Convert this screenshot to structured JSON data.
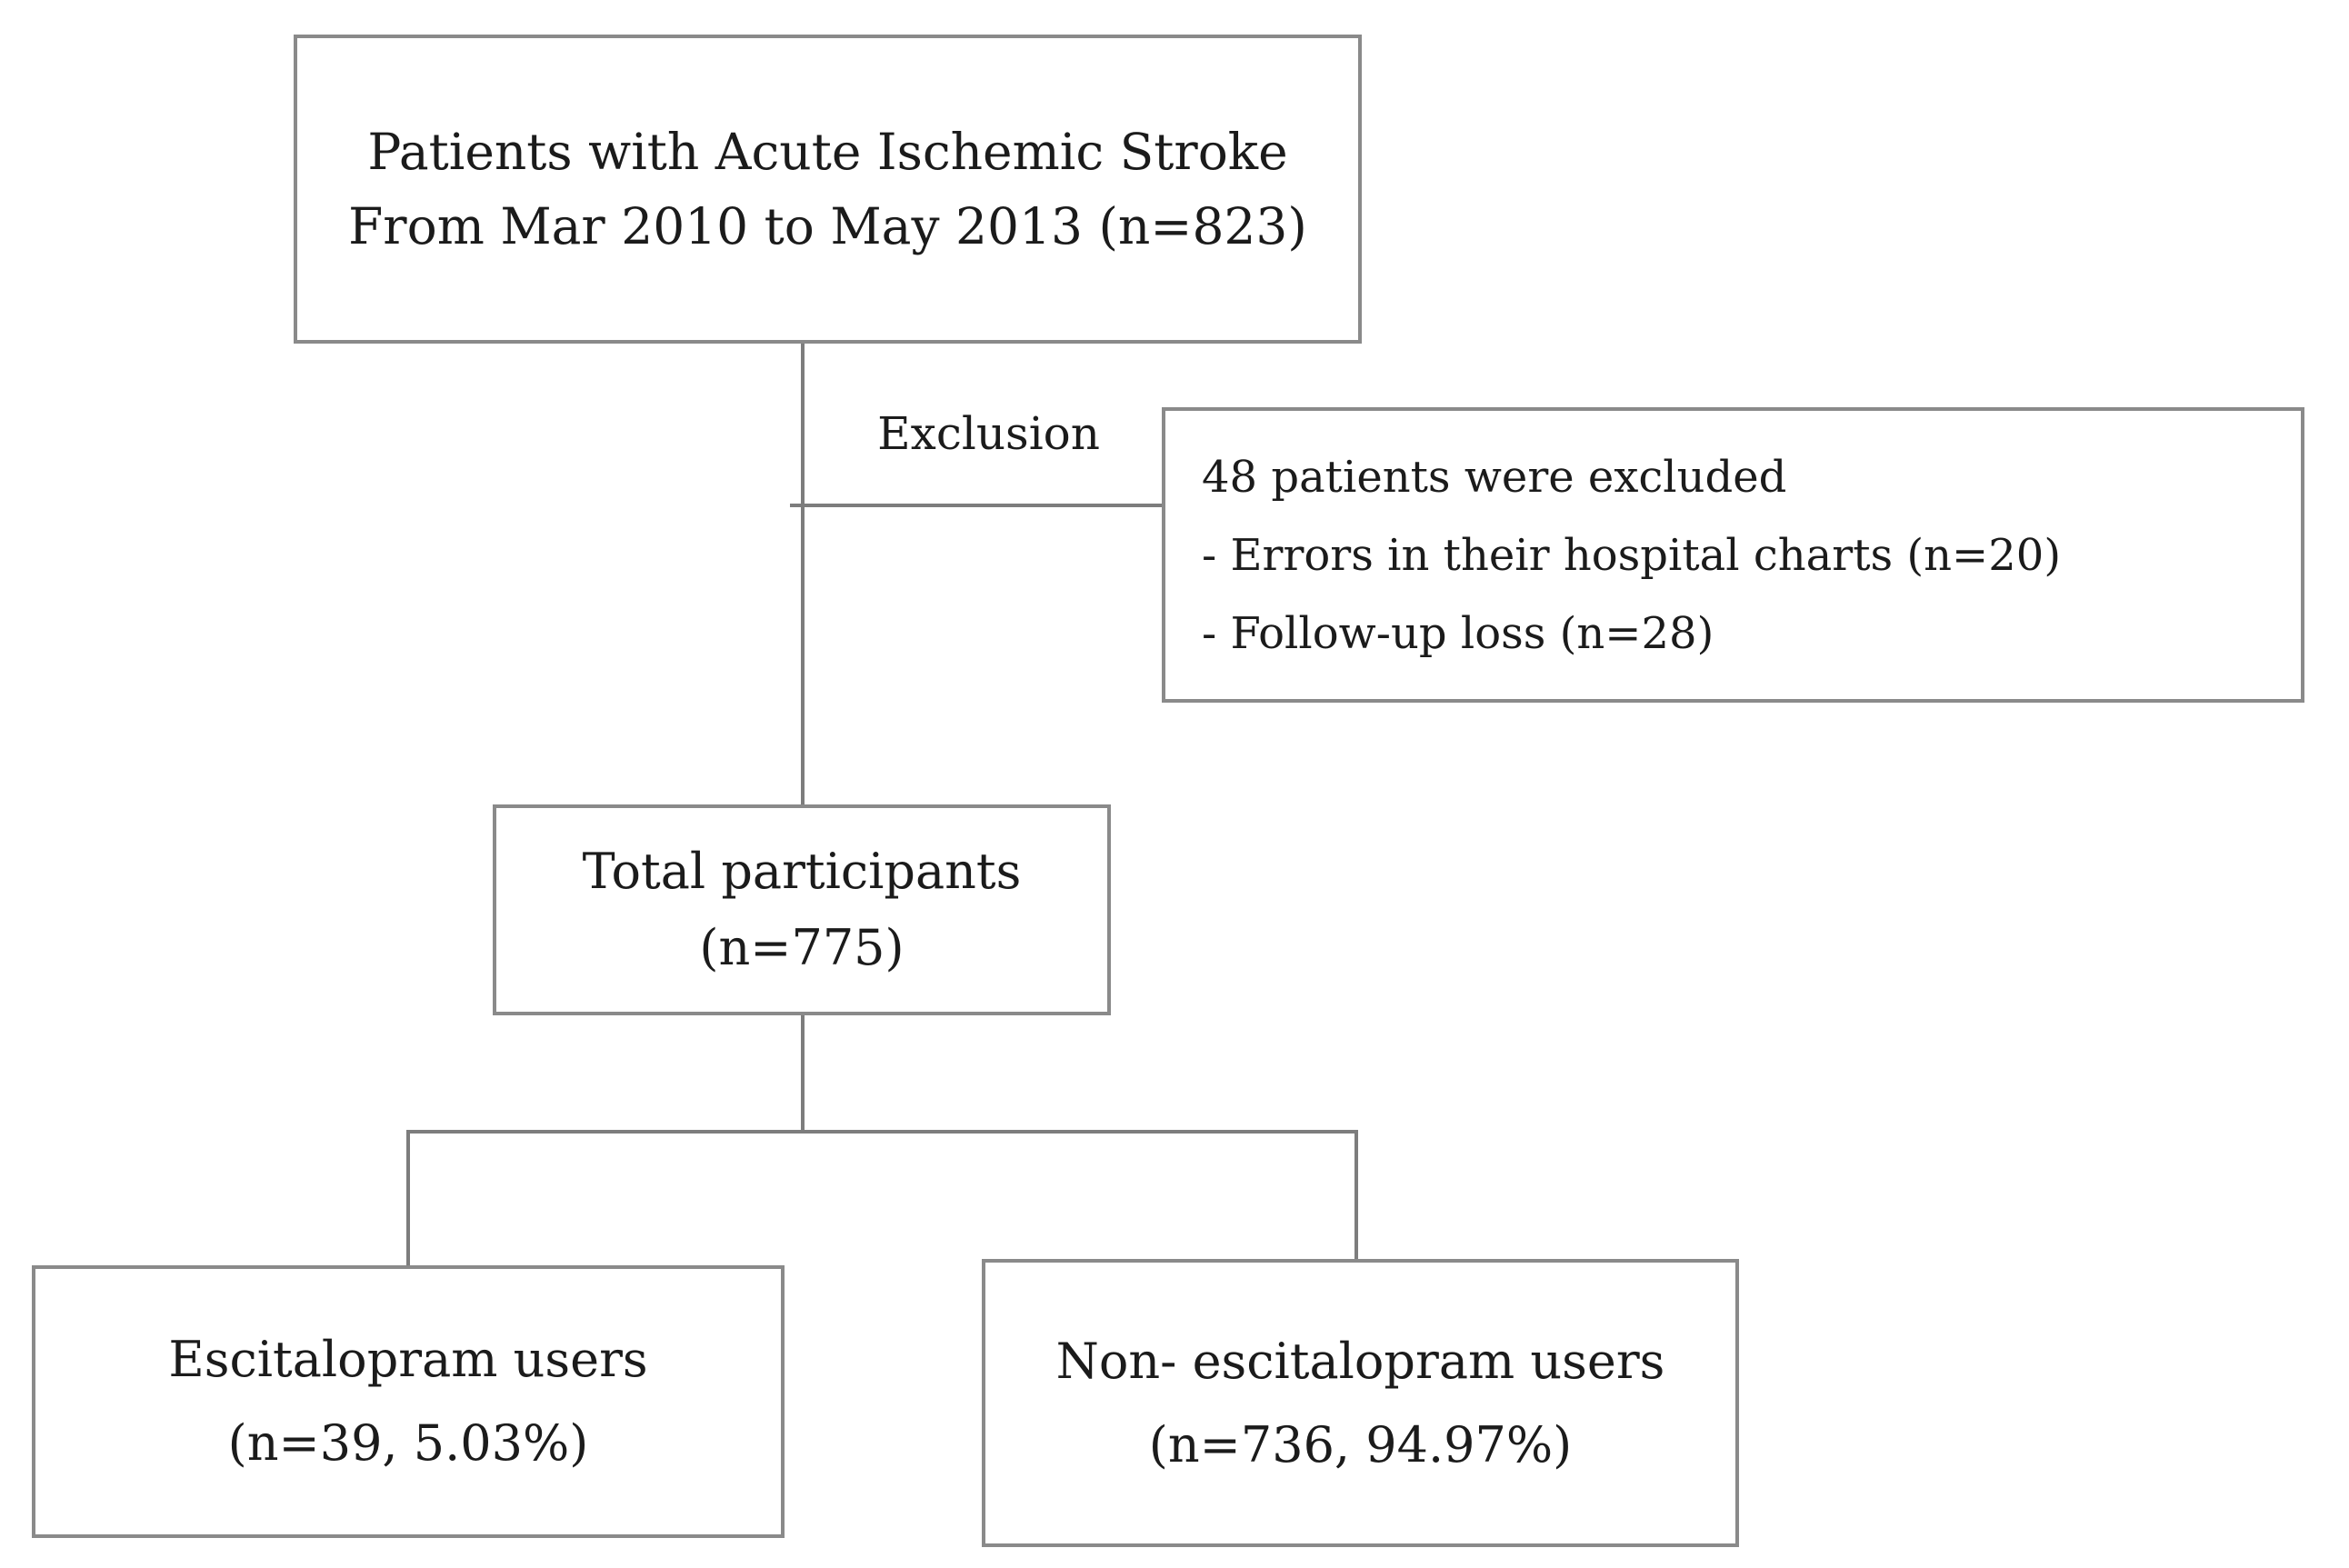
{
  "figure": {
    "background_color": "#ffffff",
    "box_border_color": "#8a8a8a",
    "connector_color": "#7d7d7d",
    "text_color": "#1b1b1b"
  },
  "nodes": {
    "source": {
      "line1": "Patients with Acute Ischemic Stroke",
      "line2": "From Mar 2010 to May 2013 (n=823)"
    },
    "exclusion": {
      "title": "48 patients were excluded",
      "items": [
        "- Errors in their hospital charts (n=20)",
        "- Follow-up loss (n=28)"
      ]
    },
    "total": {
      "line1": "Total participants",
      "line2": "(n=775)"
    },
    "escitalopram": {
      "line1": "Escitalopram users",
      "line2": "(n=39, 5.03%)"
    },
    "non_escitalopram": {
      "line1": "Non- escitalopram users",
      "line2": "(n=736, 94.97%)"
    }
  },
  "labels": {
    "exclusion_branch": "Exclusion"
  }
}
